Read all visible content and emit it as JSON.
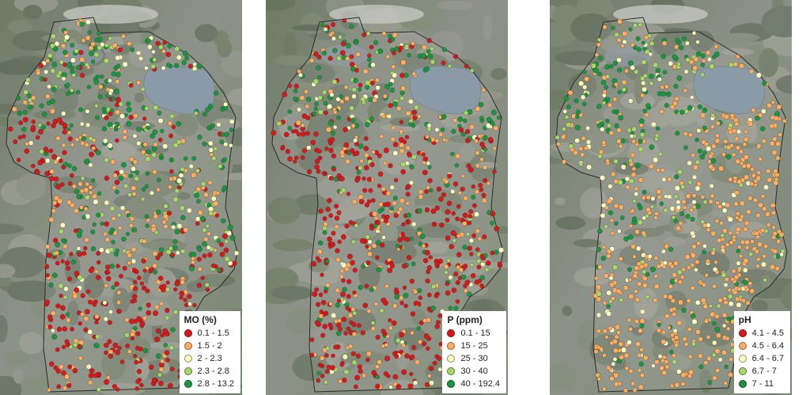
{
  "panels": [
    {
      "legend_title": "MO (%)",
      "classes": [
        {
          "label": "0.1 - 1.5",
          "color": "#d7191c"
        },
        {
          "label": "1.5 - 2",
          "color": "#fdae61"
        },
        {
          "label": "2 - 2.3",
          "color": "#ffffbf"
        },
        {
          "label": "2.3 - 2.8",
          "color": "#a6d96a"
        },
        {
          "label": "2.8 - 13.2",
          "color": "#1a9641"
        }
      ]
    },
    {
      "legend_title": "P (ppm)",
      "classes": [
        {
          "label": "0.1 - 15",
          "color": "#d7191c"
        },
        {
          "label": "15 - 25",
          "color": "#fdae61"
        },
        {
          "label": "25 - 30",
          "color": "#ffffbf"
        },
        {
          "label": "30 - 40",
          "color": "#a6d96a"
        },
        {
          "label": "40 - 192.4",
          "color": "#1a9641"
        }
      ]
    },
    {
      "legend_title": "pH",
      "classes": [
        {
          "label": "4.1 - 4.5",
          "color": "#d7191c"
        },
        {
          "label": "4.5 - 6.4",
          "color": "#fdae61"
        },
        {
          "label": "6.4 - 6.7",
          "color": "#ffffbf"
        },
        {
          "label": "6.7 - 7",
          "color": "#a6d96a"
        },
        {
          "label": "7 - 11",
          "color": "#1a9641"
        }
      ]
    }
  ],
  "map_icons": {
    "background": "satellite-imagery",
    "lake": "lake-shape",
    "boundary": "province-outline",
    "points": "sample-point-markers"
  }
}
